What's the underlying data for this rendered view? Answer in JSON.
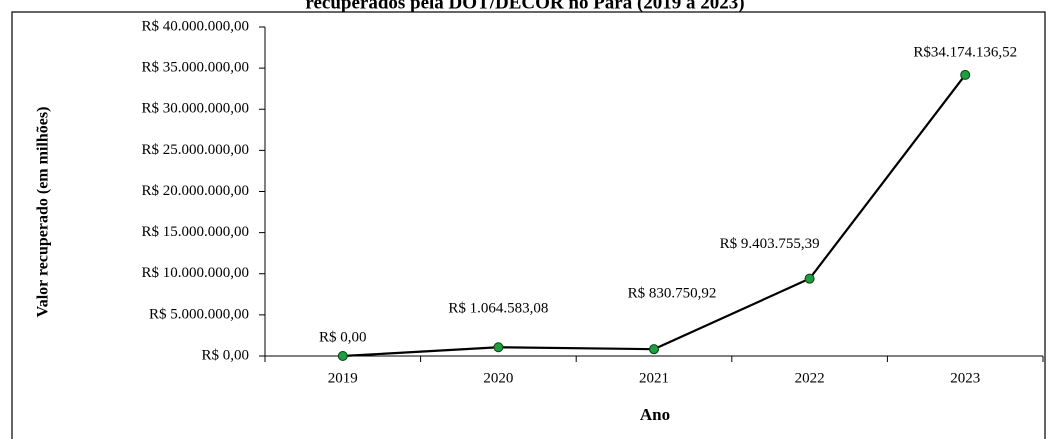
{
  "chart_data": {
    "type": "line",
    "title": "recuperados pela DOT/DECOR no Pará (2019 a 2023)",
    "x_label": "Ano",
    "y_label": "Valor recuperado (em milhões)",
    "categories": [
      "2019",
      "2020",
      "2021",
      "2022",
      "2023"
    ],
    "series": [
      {
        "name": "Valor recuperado",
        "color": "#1e9e3e",
        "values": [
          0,
          1064583.08,
          830750.92,
          9403755.39,
          34174136.52
        ],
        "value_labels": [
          "R$ 0,00",
          "R$ 1.064.583,08",
          "R$ 830.750,92",
          "R$ 9.403.755,39",
          "R$34.174.136,52"
        ]
      }
    ],
    "ylim": [
      0,
      40000000
    ],
    "yticks": [
      {
        "value": 0,
        "label": "R$ 0,00"
      },
      {
        "value": 5000000,
        "label": "R$ 5.000.000,00"
      },
      {
        "value": 10000000,
        "label": "R$ 10.000.000,00"
      },
      {
        "value": 15000000,
        "label": "R$ 15.000.000,00"
      },
      {
        "value": 20000000,
        "label": "R$ 20.000.000,00"
      },
      {
        "value": 25000000,
        "label": "R$ 25.000.000,00"
      },
      {
        "value": 30000000,
        "label": "R$ 30.000.000,00"
      },
      {
        "value": 35000000,
        "label": "R$ 35.000.000,00"
      },
      {
        "value": 40000000,
        "label": "R$ 40.000.000,00"
      }
    ],
    "grid": false
  }
}
